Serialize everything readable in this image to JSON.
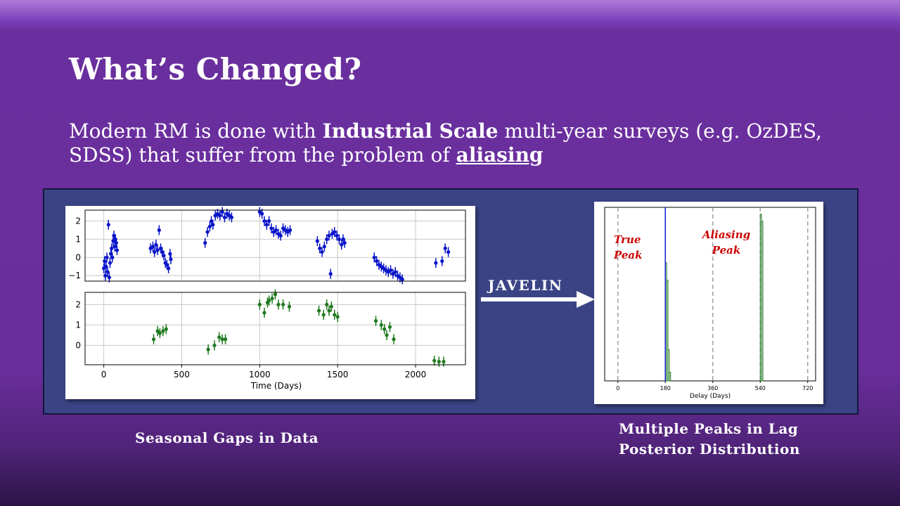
{
  "slide": {
    "title": "What’s Changed?",
    "subtitle_parts": {
      "a": "Modern RM is done with ",
      "b": "Industrial Scale",
      "c": " multi-year surveys (e.g. OzDES, SDSS) that suffer from the problem of ",
      "d": "aliasing"
    },
    "arrow_label": "JAVELIN",
    "caption_left": "Seasonal Gaps in Data",
    "caption_right_line1": "Multiple Peaks in Lag",
    "caption_right_line2": "Posterior Distribution"
  },
  "colors": {
    "panel": "#3a4485",
    "series_blue": "#0a14c8",
    "series_green": "#1f7a1f",
    "annotation_red": "#cc0000"
  },
  "chart_data": [
    {
      "type": "scatter",
      "panel": "light-curve-top",
      "xlabel": "",
      "xlim": [
        -120,
        2320
      ],
      "ylim": [
        -1.3,
        2.6
      ],
      "yticks": [
        "2",
        "1",
        "0",
        "−1"
      ],
      "ytick_values": [
        2,
        1,
        0,
        -1
      ],
      "grid": true,
      "color": "#0a14c8",
      "points": [
        [
          0,
          -0.6
        ],
        [
          5,
          -0.2
        ],
        [
          10,
          -1.0
        ],
        [
          15,
          -0.5
        ],
        [
          20,
          0.0
        ],
        [
          25,
          -0.8
        ],
        [
          30,
          1.8
        ],
        [
          35,
          -1.1
        ],
        [
          40,
          -0.3
        ],
        [
          45,
          0.2
        ],
        [
          50,
          0.5
        ],
        [
          55,
          0.0
        ],
        [
          60,
          0.9
        ],
        [
          65,
          1.2
        ],
        [
          70,
          0.6
        ],
        [
          75,
          1.0
        ],
        [
          80,
          0.8
        ],
        [
          85,
          0.4
        ],
        [
          300,
          0.5
        ],
        [
          315,
          0.6
        ],
        [
          325,
          0.3
        ],
        [
          335,
          0.7
        ],
        [
          345,
          0.4
        ],
        [
          355,
          1.5
        ],
        [
          365,
          0.5
        ],
        [
          375,
          0.3
        ],
        [
          385,
          0.1
        ],
        [
          395,
          -0.3
        ],
        [
          405,
          -0.4
        ],
        [
          415,
          -0.6
        ],
        [
          425,
          0.2
        ],
        [
          430,
          -0.1
        ],
        [
          650,
          0.8
        ],
        [
          665,
          1.4
        ],
        [
          680,
          1.7
        ],
        [
          690,
          2.0
        ],
        [
          700,
          1.8
        ],
        [
          715,
          2.3
        ],
        [
          730,
          2.4
        ],
        [
          745,
          2.3
        ],
        [
          760,
          2.5
        ],
        [
          775,
          2.2
        ],
        [
          790,
          2.4
        ],
        [
          805,
          2.3
        ],
        [
          820,
          2.2
        ],
        [
          1000,
          2.5
        ],
        [
          1015,
          2.4
        ],
        [
          1030,
          2.0
        ],
        [
          1045,
          1.8
        ],
        [
          1060,
          2.0
        ],
        [
          1075,
          1.6
        ],
        [
          1090,
          1.4
        ],
        [
          1105,
          1.5
        ],
        [
          1120,
          1.3
        ],
        [
          1135,
          1.2
        ],
        [
          1150,
          1.6
        ],
        [
          1165,
          1.5
        ],
        [
          1180,
          1.4
        ],
        [
          1195,
          1.5
        ],
        [
          1370,
          0.9
        ],
        [
          1385,
          0.5
        ],
        [
          1400,
          0.3
        ],
        [
          1415,
          0.6
        ],
        [
          1430,
          1.0
        ],
        [
          1445,
          1.2
        ],
        [
          1455,
          -0.9
        ],
        [
          1465,
          1.3
        ],
        [
          1480,
          1.4
        ],
        [
          1495,
          1.2
        ],
        [
          1510,
          1.0
        ],
        [
          1525,
          0.7
        ],
        [
          1535,
          1.0
        ],
        [
          1545,
          0.8
        ],
        [
          1735,
          0.0
        ],
        [
          1750,
          -0.2
        ],
        [
          1765,
          -0.4
        ],
        [
          1780,
          -0.5
        ],
        [
          1795,
          -0.6
        ],
        [
          1810,
          -0.7
        ],
        [
          1825,
          -0.8
        ],
        [
          1840,
          -0.7
        ],
        [
          1855,
          -0.9
        ],
        [
          1870,
          -0.8
        ],
        [
          1885,
          -1.0
        ],
        [
          1900,
          -1.1
        ],
        [
          1915,
          -1.2
        ],
        [
          2130,
          -0.3
        ],
        [
          2170,
          -0.2
        ],
        [
          2190,
          0.5
        ],
        [
          2210,
          0.3
        ]
      ]
    },
    {
      "type": "scatter",
      "panel": "light-curve-bottom",
      "xlabel": "Time (Days)",
      "xlim": [
        -120,
        2320
      ],
      "ylim": [
        -0.95,
        2.6
      ],
      "xticks": [
        "0",
        "500",
        "1000",
        "1500",
        "2000"
      ],
      "xtick_values": [
        0,
        500,
        1000,
        1500,
        2000
      ],
      "yticks": [
        "2",
        "1",
        "0"
      ],
      "ytick_values": [
        2,
        1,
        0
      ],
      "grid": true,
      "color": "#1f7a1f",
      "points": [
        [
          320,
          0.3
        ],
        [
          345,
          0.7
        ],
        [
          360,
          0.6
        ],
        [
          380,
          0.7
        ],
        [
          400,
          0.8
        ],
        [
          670,
          -0.2
        ],
        [
          710,
          0.0
        ],
        [
          740,
          0.4
        ],
        [
          760,
          0.3
        ],
        [
          780,
          0.3
        ],
        [
          1000,
          2.0
        ],
        [
          1030,
          1.6
        ],
        [
          1050,
          2.1
        ],
        [
          1060,
          2.2
        ],
        [
          1080,
          2.3
        ],
        [
          1100,
          2.5
        ],
        [
          1120,
          2.0
        ],
        [
          1150,
          2.0
        ],
        [
          1190,
          1.9
        ],
        [
          1380,
          1.7
        ],
        [
          1410,
          1.5
        ],
        [
          1430,
          2.0
        ],
        [
          1445,
          1.7
        ],
        [
          1460,
          1.9
        ],
        [
          1480,
          1.5
        ],
        [
          1500,
          1.4
        ],
        [
          1745,
          1.2
        ],
        [
          1780,
          1.0
        ],
        [
          1800,
          0.8
        ],
        [
          1815,
          0.5
        ],
        [
          1835,
          0.9
        ],
        [
          1860,
          0.3
        ],
        [
          2120,
          -0.75
        ],
        [
          2150,
          -0.8
        ],
        [
          2180,
          -0.8
        ]
      ]
    },
    {
      "type": "bar",
      "panel": "lag-posterior",
      "xlabel": "Delay (Days)",
      "xlim": [
        -50,
        750
      ],
      "xticks": [
        "0",
        "180",
        "360",
        "540",
        "720"
      ],
      "xtick_values": [
        0,
        180,
        360,
        540,
        720
      ],
      "dashed_lines": [
        0,
        180,
        360,
        540,
        720
      ],
      "highlight_line": 180,
      "color": "#1f7a1f",
      "bins": [
        [
          180,
          0.68
        ],
        [
          185,
          0.58
        ],
        [
          190,
          0.18
        ],
        [
          195,
          0.05
        ],
        [
          540,
          0.96
        ],
        [
          545,
          0.92
        ]
      ],
      "annotations": [
        {
          "label_line1": "True",
          "label_line2": "Peak"
        },
        {
          "label_line1": "Aliasing",
          "label_line2": "Peak"
        }
      ]
    }
  ]
}
